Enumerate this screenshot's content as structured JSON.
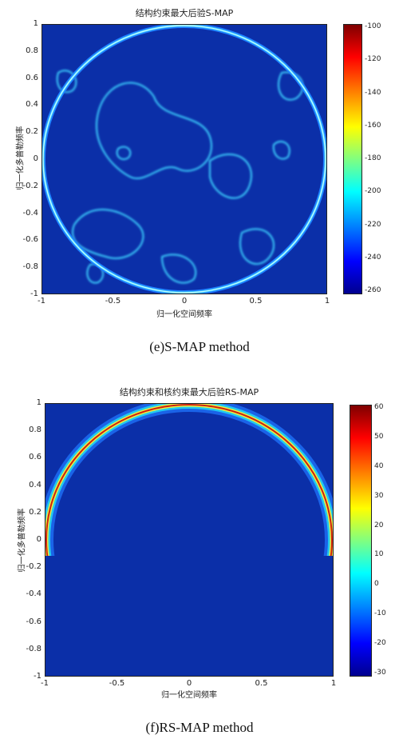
{
  "chart_data": [
    {
      "type": "heatmap",
      "title": "结构约束最大后验S-MAP",
      "xlabel": "归一化空间频率",
      "ylabel": "归一化多普勒频率",
      "xlim": [
        -1,
        1
      ],
      "ylim": [
        -1,
        1
      ],
      "x_ticks": [
        "-1",
        "-0.5",
        "0",
        "0.5",
        "1"
      ],
      "y_ticks": [
        "1",
        "0.8",
        "0.6",
        "0.4",
        "0.2",
        "0",
        "-0.2",
        "-0.4",
        "-0.6",
        "-0.8",
        "-1"
      ],
      "colorbar_range": [
        -260,
        -100
      ],
      "colorbar_ticks": [
        "-100",
        "-120",
        "-140",
        "-160",
        "-180",
        "-200",
        "-220",
        "-240",
        "-260"
      ],
      "colormap": "jet",
      "caption": "(e)S-MAP method"
    },
    {
      "type": "heatmap",
      "title": "结构约束和核约束最大后验RS-MAP",
      "xlabel": "归一化空间频率",
      "ylabel": "归一化多普勒频率",
      "xlim": [
        -1,
        1
      ],
      "ylim": [
        -1,
        1
      ],
      "x_ticks": [
        "-1",
        "-0.5",
        "0",
        "0.5",
        "1"
      ],
      "y_ticks": [
        "1",
        "0.8",
        "0.6",
        "0.4",
        "0.2",
        "0",
        "-0.2",
        "-0.4",
        "-0.6",
        "-0.8",
        "-1"
      ],
      "colorbar_range": [
        -35,
        60
      ],
      "colorbar_ticks": [
        "60",
        "50",
        "40",
        "30",
        "20",
        "10",
        "0",
        "-10",
        "-20",
        "-30"
      ],
      "colormap": "jet",
      "caption": "(f)RS-MAP method"
    }
  ]
}
